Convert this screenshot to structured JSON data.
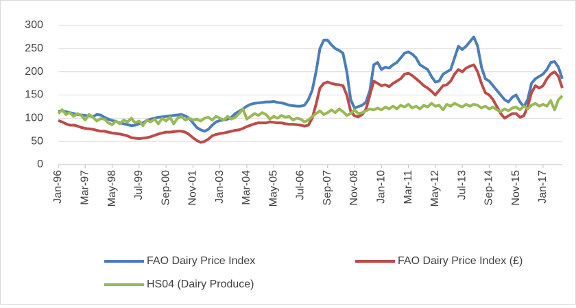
{
  "chart_data": {
    "type": "line",
    "categories": [
      "Jan-96",
      null,
      null,
      null,
      null,
      null,
      null,
      "Mar-97",
      null,
      null,
      null,
      null,
      null,
      null,
      "May-98",
      null,
      null,
      null,
      null,
      null,
      null,
      "Jul-99",
      null,
      null,
      null,
      null,
      null,
      null,
      "Sep-00",
      null,
      null,
      null,
      null,
      null,
      null,
      "Nov-01",
      null,
      null,
      null,
      null,
      null,
      null,
      "Jan-03",
      null,
      null,
      null,
      null,
      null,
      null,
      "Mar-04",
      null,
      null,
      null,
      null,
      null,
      null,
      "May-05",
      null,
      null,
      null,
      null,
      null,
      null,
      "Jul-06",
      null,
      null,
      null,
      null,
      null,
      null,
      "Sep-07",
      null,
      null,
      null,
      null,
      null,
      null,
      "Nov-08",
      null,
      null,
      null,
      null,
      null,
      null,
      "Jan-10",
      null,
      null,
      null,
      null,
      null,
      null,
      "Mar-11",
      null,
      null,
      null,
      null,
      null,
      null,
      "May-12",
      null,
      null,
      null,
      null,
      null,
      null,
      "Jul-13",
      null,
      null,
      null,
      null,
      null,
      null,
      "Sep-14",
      null,
      null,
      null,
      null,
      null,
      null,
      "Nov-15",
      null,
      null,
      null,
      null,
      null,
      null,
      "Jan-17",
      null,
      null,
      null,
      null,
      null
    ],
    "series": [
      {
        "name": "FAO Dairy Price Index",
        "color": "#4a7ebb",
        "values": [
          115,
          116,
          114,
          112,
          110,
          108,
          107,
          106,
          105,
          103,
          108,
          107,
          102,
          98,
          95,
          93,
          90,
          88,
          86,
          84,
          85,
          88,
          90,
          95,
          98,
          100,
          102,
          103,
          104,
          105,
          106,
          107,
          108,
          105,
          100,
          90,
          80,
          75,
          72,
          76,
          85,
          92,
          95,
          96,
          98,
          102,
          110,
          115,
          120,
          126,
          130,
          132,
          133,
          134,
          135,
          135,
          136,
          134,
          133,
          131,
          128,
          127,
          126,
          126,
          128,
          140,
          160,
          200,
          250,
          268,
          268,
          258,
          250,
          246,
          240,
          200,
          140,
          122,
          125,
          128,
          135,
          160,
          215,
          220,
          205,
          210,
          208,
          215,
          220,
          230,
          240,
          243,
          238,
          230,
          215,
          210,
          205,
          190,
          178,
          180,
          195,
          200,
          205,
          230,
          255,
          248,
          255,
          265,
          275,
          255,
          210,
          185,
          180,
          170,
          160,
          150,
          140,
          135,
          145,
          150,
          135,
          125,
          140,
          175,
          185,
          190,
          195,
          205,
          220,
          222,
          210,
          185
        ]
      },
      {
        "name": "FAO Dairy Price Index (£)",
        "color": "#be4b48",
        "values": [
          95,
          92,
          88,
          85,
          85,
          83,
          80,
          78,
          77,
          76,
          74,
          72,
          72,
          70,
          68,
          67,
          66,
          64,
          62,
          58,
          57,
          56,
          57,
          58,
          60,
          63,
          66,
          68,
          70,
          70,
          71,
          72,
          72,
          70,
          65,
          58,
          52,
          48,
          50,
          55,
          62,
          65,
          67,
          68,
          70,
          72,
          74,
          75,
          78,
          82,
          85,
          88,
          90,
          90,
          90,
          92,
          91,
          90,
          90,
          88,
          87,
          87,
          86,
          85,
          83,
          85,
          100,
          130,
          165,
          175,
          178,
          175,
          173,
          172,
          170,
          150,
          115,
          105,
          103,
          108,
          120,
          150,
          180,
          175,
          170,
          172,
          168,
          175,
          180,
          185,
          195,
          197,
          192,
          185,
          178,
          170,
          165,
          158,
          150,
          160,
          170,
          172,
          180,
          195,
          205,
          200,
          208,
          212,
          215,
          200,
          175,
          155,
          150,
          140,
          125,
          110,
          100,
          105,
          110,
          110,
          102,
          105,
          125,
          155,
          170,
          165,
          170,
          185,
          195,
          200,
          190,
          165
        ]
      },
      {
        "name": "HS04 (Dairy Produce)",
        "color": "#98b954",
        "values": [
          110,
          118,
          108,
          112,
          104,
          110,
          106,
          96,
          108,
          102,
          94,
          99,
          98,
          90,
          86,
          94,
          88,
          96,
          92,
          100,
          90,
          94,
          84,
          96,
          92,
          98,
          88,
          100,
          94,
          102,
          88,
          100,
          104,
          96,
          100,
          96,
          98,
          94,
          100,
          102,
          96,
          104,
          100,
          96,
          104,
          98,
          102,
          110,
          120,
          98,
          104,
          110,
          106,
          112,
          108,
          98,
          104,
          100,
          106,
          102,
          104,
          96,
          100,
          98,
          92,
          96,
          104,
          110,
          116,
          108,
          112,
          118,
          112,
          120,
          114,
          106,
          110,
          118,
          110,
          112,
          116,
          120,
          118,
          122,
          118,
          124,
          120,
          126,
          120,
          128,
          124,
          130,
          122,
          126,
          120,
          128,
          124,
          132,
          126,
          128,
          118,
          130,
          126,
          132,
          128,
          124,
          130,
          126,
          130,
          128,
          122,
          126,
          120,
          124,
          118,
          114,
          120,
          116,
          122,
          124,
          118,
          126,
          120,
          128,
          132,
          126,
          130,
          126,
          138,
          118,
          140,
          148
        ]
      }
    ],
    "ylim": [
      0,
      300
    ],
    "yticks": [
      0,
      50,
      100,
      150,
      200,
      250,
      300
    ],
    "grid": true
  }
}
